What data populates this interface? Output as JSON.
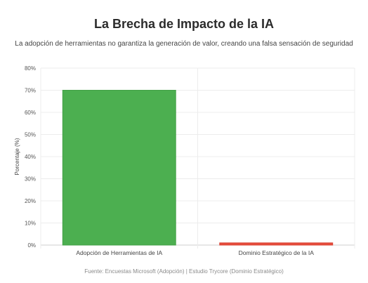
{
  "chart_data": {
    "type": "bar",
    "title": "La Brecha de Impacto de la IA",
    "subtitle": "La adopción de herramientas no garantiza la generación de valor, creando una falsa sensación de seguridad",
    "ylabel": "Porcentaje (%)",
    "xlabel": "",
    "categories": [
      "Adopción de Herramientas de IA",
      "Dominio Estratégico de la IA"
    ],
    "values": [
      70,
      1
    ],
    "colors": [
      "#4caf50",
      "#e74c3c"
    ],
    "ylim": [
      0,
      80
    ],
    "yticks": [
      0,
      10,
      20,
      30,
      40,
      50,
      60,
      70,
      80
    ],
    "ytick_suffix": "%",
    "grid": true,
    "legend": "none"
  },
  "footer": "Fuente: Encuestas Microsoft (Adopción) | Estudio Trycore (Dominio Estratégico)"
}
